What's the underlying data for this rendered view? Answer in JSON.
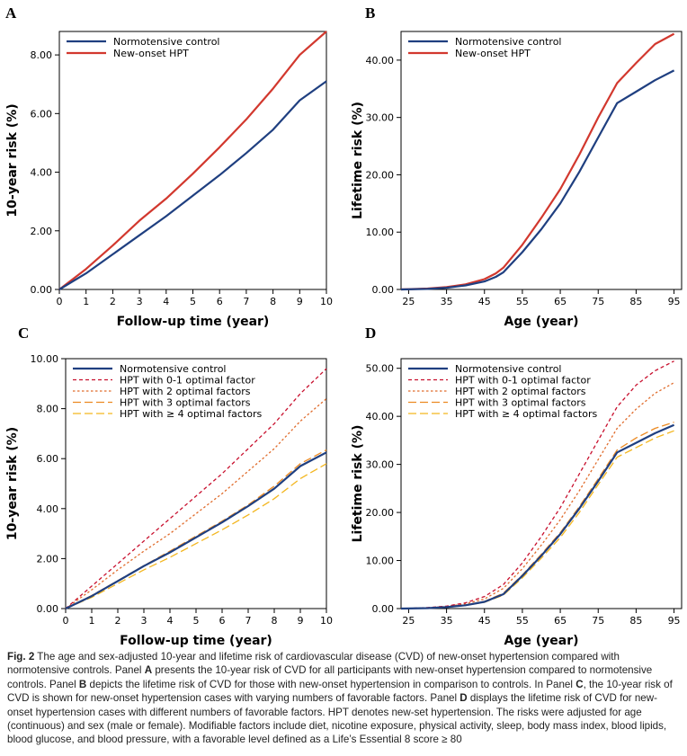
{
  "colors": {
    "control": "#1f3f80",
    "hpt": "#d2382e",
    "hpt01": "#c8102e",
    "hpt2": "#e06c2c",
    "hpt3": "#ec8a22",
    "hpt4": "#f3b61f"
  },
  "chart_data": [
    {
      "panel_label": "A",
      "type": "line",
      "xlabel": "Follow-up time (year)",
      "ylabel": "10-year risk (%)",
      "xlim": [
        0,
        10
      ],
      "ylim": [
        0,
        8.8
      ],
      "xticks": [
        "0",
        "1",
        "2",
        "3",
        "4",
        "5",
        "6",
        "7",
        "8",
        "9",
        "10"
      ],
      "yticks": [
        "0.00",
        "2.00",
        "4.00",
        "6.00",
        "8.00"
      ],
      "legend_position": "top-left",
      "series": [
        {
          "name": "Normotensive control",
          "style": "solid",
          "color": "#1f3f80",
          "x": [
            0,
            1,
            2,
            3,
            4,
            5,
            6,
            7,
            8,
            9,
            10
          ],
          "y": [
            0,
            0.55,
            1.2,
            1.85,
            2.5,
            3.2,
            3.9,
            4.65,
            5.45,
            6.45,
            7.1
          ]
        },
        {
          "name": "New-onset HPT",
          "style": "solid",
          "color": "#d2382e",
          "x": [
            0,
            1,
            2,
            3,
            4,
            5,
            6,
            7,
            8,
            9,
            10
          ],
          "y": [
            0,
            0.7,
            1.5,
            2.35,
            3.1,
            3.95,
            4.85,
            5.8,
            6.85,
            8.0,
            8.8
          ]
        }
      ]
    },
    {
      "panel_label": "B",
      "type": "line",
      "xlabel": "Age (year)",
      "ylabel": "Lifetime risk (%)",
      "xlim": [
        23,
        97
      ],
      "ylim": [
        0,
        45
      ],
      "xticks": [
        "25",
        "35",
        "45",
        "55",
        "65",
        "75",
        "85",
        "95"
      ],
      "yticks": [
        "0.00",
        "10.00",
        "20.00",
        "30.00",
        "40.00"
      ],
      "legend_position": "top-left",
      "series": [
        {
          "name": "Normotensive control",
          "style": "solid",
          "color": "#1f3f80",
          "x": [
            23,
            30,
            35,
            40,
            45,
            48,
            50,
            55,
            60,
            65,
            70,
            75,
            80,
            85,
            90,
            95
          ],
          "y": [
            0,
            0.1,
            0.3,
            0.7,
            1.4,
            2.2,
            3.0,
            6.5,
            10.5,
            15.0,
            20.5,
            26.5,
            32.5,
            34.5,
            36.5,
            38.2
          ]
        },
        {
          "name": "New-onset HPT",
          "style": "solid",
          "color": "#d2382e",
          "x": [
            23,
            30,
            35,
            40,
            45,
            48,
            50,
            55,
            60,
            65,
            70,
            75,
            80,
            85,
            90,
            95
          ],
          "y": [
            0,
            0.15,
            0.4,
            0.9,
            1.8,
            2.8,
            3.8,
            7.8,
            12.5,
            17.5,
            23.5,
            30.0,
            36.0,
            39.5,
            42.8,
            44.6
          ]
        }
      ]
    },
    {
      "panel_label": "C",
      "type": "line",
      "xlabel": "Follow-up time (year)",
      "ylabel": "10-year risk (%)",
      "xlim": [
        0,
        10
      ],
      "ylim": [
        0,
        10
      ],
      "xticks": [
        "0",
        "1",
        "2",
        "3",
        "4",
        "5",
        "6",
        "7",
        "8",
        "9",
        "10"
      ],
      "yticks": [
        "0.00",
        "2.00",
        "4.00",
        "6.00",
        "8.00",
        "10.00"
      ],
      "legend_position": "top-left",
      "series": [
        {
          "name": "Normotensive control",
          "style": "solid",
          "color": "#1f3f80",
          "x": [
            0,
            1,
            2,
            3,
            4,
            5,
            6,
            7,
            8,
            9,
            10
          ],
          "y": [
            0,
            0.5,
            1.1,
            1.7,
            2.25,
            2.85,
            3.45,
            4.1,
            4.8,
            5.7,
            6.25
          ]
        },
        {
          "name": "HPT with 0-1 optimal factor",
          "style": "dash-short",
          "color": "#c8102e",
          "x": [
            0,
            1,
            2,
            3,
            4,
            5,
            6,
            7,
            8,
            9,
            10
          ],
          "y": [
            0,
            0.9,
            1.8,
            2.7,
            3.6,
            4.5,
            5.4,
            6.4,
            7.4,
            8.6,
            9.6
          ]
        },
        {
          "name": "HPT with 2 optimal factors",
          "style": "dash-fine",
          "color": "#e06c2c",
          "x": [
            0,
            1,
            2,
            3,
            4,
            5,
            6,
            7,
            8,
            9,
            10
          ],
          "y": [
            0,
            0.75,
            1.55,
            2.3,
            3.0,
            3.8,
            4.6,
            5.5,
            6.4,
            7.5,
            8.4
          ]
        },
        {
          "name": "HPT with 3 optimal factors",
          "style": "dash-long",
          "color": "#ec8a22",
          "x": [
            0,
            1,
            2,
            3,
            4,
            5,
            6,
            7,
            8,
            9,
            10
          ],
          "y": [
            0,
            0.52,
            1.12,
            1.72,
            2.3,
            2.9,
            3.5,
            4.15,
            4.9,
            5.8,
            6.35
          ]
        },
        {
          "name": "HPT with ≥ 4 optimal factors",
          "style": "dash-long",
          "color": "#f3b61f",
          "x": [
            0,
            1,
            2,
            3,
            4,
            5,
            6,
            7,
            8,
            9,
            10
          ],
          "y": [
            0,
            0.45,
            1.0,
            1.55,
            2.05,
            2.6,
            3.15,
            3.75,
            4.4,
            5.2,
            5.8
          ]
        }
      ]
    },
    {
      "panel_label": "D",
      "type": "line",
      "xlabel": "Age (year)",
      "ylabel": "Lifetime risk (%)",
      "xlim": [
        23,
        97
      ],
      "ylim": [
        0,
        52
      ],
      "xticks": [
        "25",
        "35",
        "45",
        "55",
        "65",
        "75",
        "85",
        "95"
      ],
      "yticks": [
        "0.00",
        "10.00",
        "20.00",
        "30.00",
        "40.00",
        "50.00"
      ],
      "legend_position": "top-left",
      "series": [
        {
          "name": "Normotensive control",
          "style": "solid",
          "color": "#1f3f80",
          "x": [
            23,
            30,
            35,
            40,
            45,
            50,
            55,
            60,
            65,
            70,
            75,
            80,
            85,
            90,
            95
          ],
          "y": [
            0,
            0.1,
            0.3,
            0.7,
            1.4,
            3.0,
            6.8,
            11.0,
            15.5,
            20.8,
            26.5,
            32.5,
            34.5,
            36.5,
            38.2
          ]
        },
        {
          "name": "HPT with 0-1 optimal factor",
          "style": "dash-short",
          "color": "#c8102e",
          "x": [
            23,
            30,
            35,
            40,
            45,
            50,
            55,
            60,
            65,
            70,
            75,
            80,
            85,
            90,
            95
          ],
          "y": [
            0,
            0.2,
            0.5,
            1.2,
            2.5,
            5.0,
            9.5,
            15.0,
            21.0,
            28.0,
            35.0,
            42.0,
            46.5,
            49.5,
            51.5
          ]
        },
        {
          "name": "HPT with 2 optimal factors",
          "style": "dash-fine",
          "color": "#e06c2c",
          "x": [
            23,
            30,
            35,
            40,
            45,
            50,
            55,
            60,
            65,
            70,
            75,
            80,
            85,
            90,
            95
          ],
          "y": [
            0,
            0.15,
            0.45,
            1.0,
            2.0,
            4.2,
            8.3,
            13.2,
            18.5,
            24.5,
            31.0,
            37.5,
            41.5,
            44.8,
            47.0
          ]
        },
        {
          "name": "HPT with 3 optimal factors",
          "style": "dash-long",
          "color": "#ec8a22",
          "x": [
            23,
            30,
            35,
            40,
            45,
            50,
            55,
            60,
            65,
            70,
            75,
            80,
            85,
            90,
            95
          ],
          "y": [
            0,
            0.1,
            0.3,
            0.75,
            1.5,
            3.2,
            7.0,
            11.3,
            15.8,
            21.2,
            27.0,
            33.0,
            35.5,
            37.5,
            38.8
          ]
        },
        {
          "name": "HPT with ≥ 4 optimal factors",
          "style": "dash-long",
          "color": "#f3b61f",
          "x": [
            23,
            30,
            35,
            40,
            45,
            50,
            55,
            60,
            65,
            70,
            75,
            80,
            85,
            90,
            95
          ],
          "y": [
            0,
            0.1,
            0.25,
            0.65,
            1.3,
            2.8,
            6.4,
            10.5,
            14.8,
            20.0,
            25.8,
            31.5,
            33.5,
            35.5,
            37.0
          ]
        }
      ]
    }
  ],
  "caption": {
    "figure_label": "Fig. 2",
    "parts": [
      {
        "t": " The age and sex-adjusted 10-year and lifetime risk of cardiovascular disease (CVD) of new-onset hypertension compared with normotensive controls. Panel ",
        "b": false
      },
      {
        "t": "A",
        "b": true
      },
      {
        "t": " presents the 10-year risk of CVD for all participants with new-onset hypertension compared to normotensive controls. Panel ",
        "b": false
      },
      {
        "t": "B",
        "b": true
      },
      {
        "t": " depicts the lifetime risk of CVD for those with new-onset hypertension in comparison to controls. In Panel ",
        "b": false
      },
      {
        "t": "C",
        "b": true
      },
      {
        "t": ", the 10-year risk of CVD is shown for new-onset hypertension cases with varying numbers of favorable factors. Panel ",
        "b": false
      },
      {
        "t": "D",
        "b": true
      },
      {
        "t": " displays the lifetime risk of CVD for new-onset hypertension cases with different numbers of favorable factors. HPT denotes new-set hypertension. The risks were adjusted for age (continuous) and sex (male or female). Modifiable factors include diet, nicotine exposure, physical activity, sleep, body mass index, blood lipids, blood glucose, and blood pressure, with a favorable level defined as a Life’s Essential 8 score ≥ 80",
        "b": false
      }
    ]
  }
}
